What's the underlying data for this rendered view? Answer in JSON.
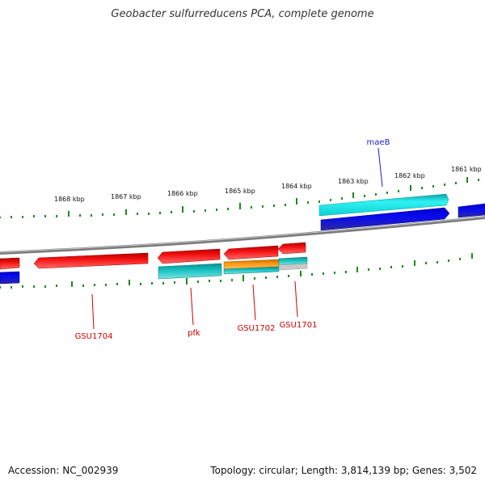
{
  "title": "Geobacter sulfurreducens PCA, complete genome",
  "footer": {
    "accession": "Accession: NC_002939",
    "summary": "Topology: circular; Length: 3,814,139 bp; Genes: 3,502"
  },
  "colors": {
    "backbone": "#8c8c8c",
    "tick": "#1a8a1a",
    "forward_gene": "#0000e6",
    "forward_cds": "#19e6e6",
    "reverse_gene": "#f20d0d",
    "reverse_cds": "#19b4b4",
    "reverse_cds_alt": "#ff9900",
    "label_blue": "#1a1acc",
    "label_red": "#cc0000"
  },
  "kbp_labels": [
    "1868 kbp",
    "1867 kbp",
    "1866 kbp",
    "1865 kbp",
    "1864 kbp",
    "1863 kbp",
    "1862 kbp",
    "1861 kbp"
  ],
  "gene_labels": [
    {
      "text": "maeB",
      "strand": "forward"
    },
    {
      "text": "GSU1704",
      "strand": "reverse"
    },
    {
      "text": "pfk",
      "strand": "reverse"
    },
    {
      "text": "GSU1702",
      "strand": "reverse"
    },
    {
      "text": "GSU1701",
      "strand": "reverse"
    }
  ]
}
